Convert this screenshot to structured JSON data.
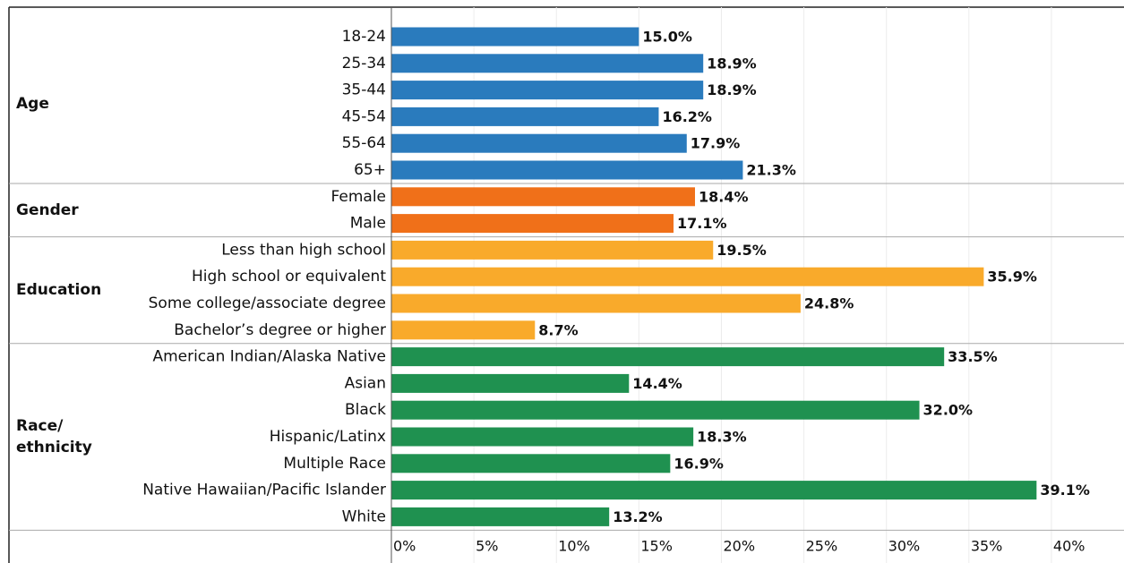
{
  "chart_data": {
    "type": "bar",
    "groups": [
      {
        "name": "Age",
        "color": "#2a7bbd",
        "categories": [
          "18-24",
          "25-34",
          "35-44",
          "45-54",
          "55-64",
          "65+"
        ],
        "values": [
          15.0,
          18.9,
          18.9,
          16.2,
          17.9,
          21.3
        ],
        "value_labels": [
          "15.0%",
          "18.9%",
          "18.9%",
          "16.2%",
          "17.9%",
          "21.3%"
        ]
      },
      {
        "name": "Gender",
        "color": "#f07019",
        "categories": [
          "Female",
          "Male"
        ],
        "values": [
          18.4,
          17.1
        ],
        "value_labels": [
          "18.4%",
          "17.1%"
        ]
      },
      {
        "name": "Education",
        "color": "#f9aa2b",
        "categories": [
          "Less than high school",
          "High school or equivalent",
          "Some college/associate degree",
          "Bachelor’s degree or higher"
        ],
        "values": [
          19.5,
          35.9,
          24.8,
          8.7
        ],
        "value_labels": [
          "19.5%",
          "35.9%",
          "24.8%",
          "8.7%"
        ]
      },
      {
        "name": "Race/\nethnicity",
        "color": "#1f9150",
        "categories": [
          "American Indian/Alaska Native",
          "Asian",
          "Black",
          "Hispanic/Latinx",
          "Multiple Race",
          "Native Hawaiian/Pacific Islander",
          "White"
        ],
        "values": [
          33.5,
          14.4,
          32.0,
          18.3,
          16.9,
          39.1,
          13.2
        ],
        "value_labels": [
          "33.5%",
          "14.4%",
          "32.0%",
          "18.3%",
          "16.9%",
          "39.1%",
          "13.2%"
        ]
      }
    ],
    "xlim": [
      0,
      44.4
    ],
    "xticks": [
      {
        "value": 0,
        "label": "0%"
      },
      {
        "value": 5,
        "label": "5%"
      },
      {
        "value": 10,
        "label": "10%"
      },
      {
        "value": 15,
        "label": "15%"
      },
      {
        "value": 20,
        "label": "20%"
      },
      {
        "value": 25,
        "label": "25%"
      },
      {
        "value": 30,
        "label": "30%"
      },
      {
        "value": 35,
        "label": "35%"
      },
      {
        "value": 40,
        "label": "40%"
      }
    ],
    "grid": true
  }
}
